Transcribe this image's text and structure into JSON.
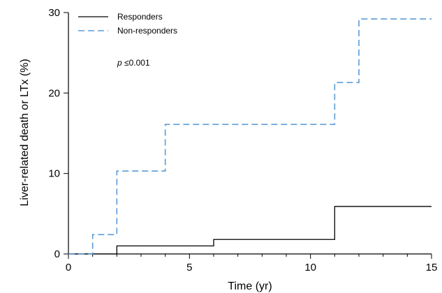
{
  "chart_data": {
    "type": "line",
    "title": "",
    "xlabel": "Time (yr)",
    "ylabel": "Liver-related death or LTx (%)",
    "xlim": [
      0,
      15
    ],
    "ylim": [
      0,
      30
    ],
    "x_ticks": [
      0,
      5,
      10,
      15
    ],
    "x_minor_ticks": [
      1,
      2,
      3,
      4,
      6,
      7,
      8,
      9,
      11,
      12,
      13,
      14
    ],
    "y_ticks": [
      0,
      10,
      20,
      30
    ],
    "grid": false,
    "step": true,
    "legend_position": "top-left",
    "annotation": {
      "italic": "p",
      "text": " ≤0.001"
    },
    "series": [
      {
        "name": "Responders",
        "color": "#000000",
        "style": "solid",
        "x": [
          0,
          2,
          6,
          11,
          15
        ],
        "y": [
          0,
          1.0,
          1.8,
          5.9,
          5.9
        ]
      },
      {
        "name": "Non-responders",
        "color": "#5b9bd5",
        "style": "dashed",
        "x": [
          0,
          1,
          2,
          4,
          11,
          12,
          15
        ],
        "y": [
          0,
          2.4,
          10.3,
          16.1,
          21.3,
          29.2,
          29.2
        ]
      }
    ]
  }
}
